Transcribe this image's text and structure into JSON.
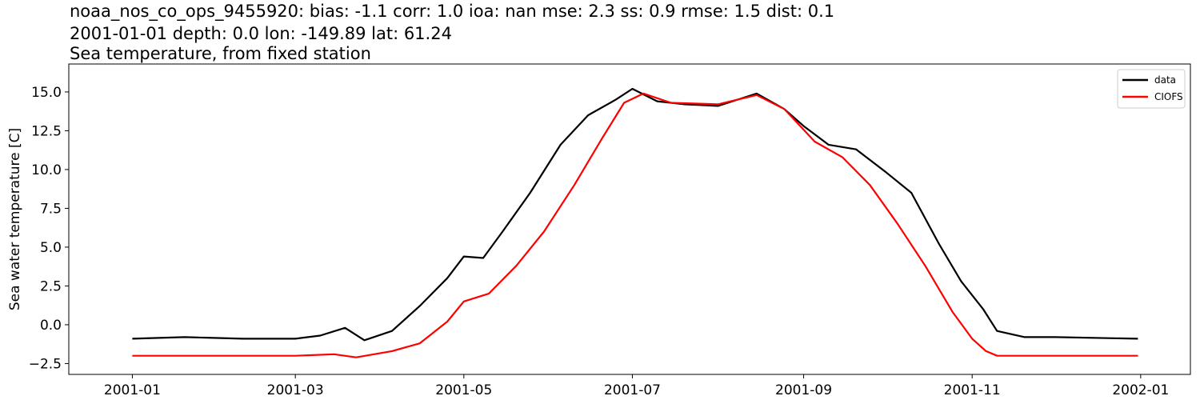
{
  "title": {
    "line1": "noaa_nos_co_ops_9455920: bias: -1.1  corr: 1.0  ioa: nan  mse: 2.3  ss: 0.9  rmse: 1.5  dist: 0.1",
    "line2": "2001-01-01 depth: 0.0 lon: -149.89 lat: 61.24",
    "line3": "Sea temperature, from fixed station"
  },
  "chart_data": {
    "type": "line",
    "ylabel": "Sea water temperature [C]",
    "xlabel": "",
    "xlim": [
      "2000-12-09",
      "2002-01-19"
    ],
    "ylim": [
      -3.2,
      16.8
    ],
    "x_ticks": [
      "2001-01",
      "2001-03",
      "2001-05",
      "2001-07",
      "2001-09",
      "2001-11",
      "2002-01"
    ],
    "y_ticks": [
      -2.5,
      0.0,
      2.5,
      5.0,
      7.5,
      10.0,
      12.5,
      15.0
    ],
    "y_tick_labels": [
      "−2.5",
      "0.0",
      "2.5",
      "5.0",
      "7.5",
      "10.0",
      "12.5",
      "15.0"
    ],
    "grid": false,
    "legend": "top-right",
    "series": [
      {
        "name": "data",
        "color": "#000000",
        "x": [
          "2001-01-01",
          "2001-01-20",
          "2001-02-10",
          "2001-03-01",
          "2001-03-10",
          "2001-03-19",
          "2001-03-26",
          "2001-04-05",
          "2001-04-15",
          "2001-04-25",
          "2001-05-01",
          "2001-05-08",
          "2001-05-15",
          "2001-05-25",
          "2001-06-05",
          "2001-06-15",
          "2001-06-25",
          "2001-07-01",
          "2001-07-10",
          "2001-07-20",
          "2001-08-01",
          "2001-08-15",
          "2001-08-25",
          "2001-09-01",
          "2001-09-10",
          "2001-09-20",
          "2001-10-01",
          "2001-10-10",
          "2001-10-20",
          "2001-10-28",
          "2001-11-05",
          "2001-11-10",
          "2001-11-20",
          "2001-12-01",
          "2001-12-31"
        ],
        "y": [
          -0.9,
          -0.8,
          -0.9,
          -0.9,
          -0.7,
          -0.2,
          -1.0,
          -0.4,
          1.2,
          3.0,
          4.4,
          4.3,
          6.0,
          8.5,
          11.6,
          13.5,
          14.5,
          15.2,
          14.4,
          14.2,
          14.1,
          14.9,
          13.9,
          12.8,
          11.6,
          11.3,
          9.8,
          8.5,
          5.2,
          2.8,
          1.0,
          -0.4,
          -0.8,
          -0.8,
          -0.9
        ]
      },
      {
        "name": "CIOFS",
        "color": "#ff0000",
        "x": [
          "2001-01-01",
          "2001-02-10",
          "2001-03-01",
          "2001-03-15",
          "2001-03-23",
          "2001-04-05",
          "2001-04-15",
          "2001-04-25",
          "2001-05-01",
          "2001-05-10",
          "2001-05-20",
          "2001-05-30",
          "2001-06-10",
          "2001-06-20",
          "2001-06-28",
          "2001-07-05",
          "2001-07-15",
          "2001-08-01",
          "2001-08-15",
          "2001-08-25",
          "2001-09-05",
          "2001-09-15",
          "2001-09-25",
          "2001-10-05",
          "2001-10-15",
          "2001-10-25",
          "2001-11-01",
          "2001-11-06",
          "2001-11-10",
          "2001-11-20",
          "2001-12-31"
        ],
        "y": [
          -2.0,
          -2.0,
          -2.0,
          -1.9,
          -2.1,
          -1.7,
          -1.2,
          0.2,
          1.5,
          2.0,
          3.8,
          6.0,
          9.0,
          12.0,
          14.3,
          14.9,
          14.3,
          14.2,
          14.8,
          13.9,
          11.8,
          10.8,
          9.0,
          6.5,
          3.8,
          0.8,
          -0.9,
          -1.7,
          -2.0,
          -2.0,
          -2.0
        ]
      }
    ]
  }
}
